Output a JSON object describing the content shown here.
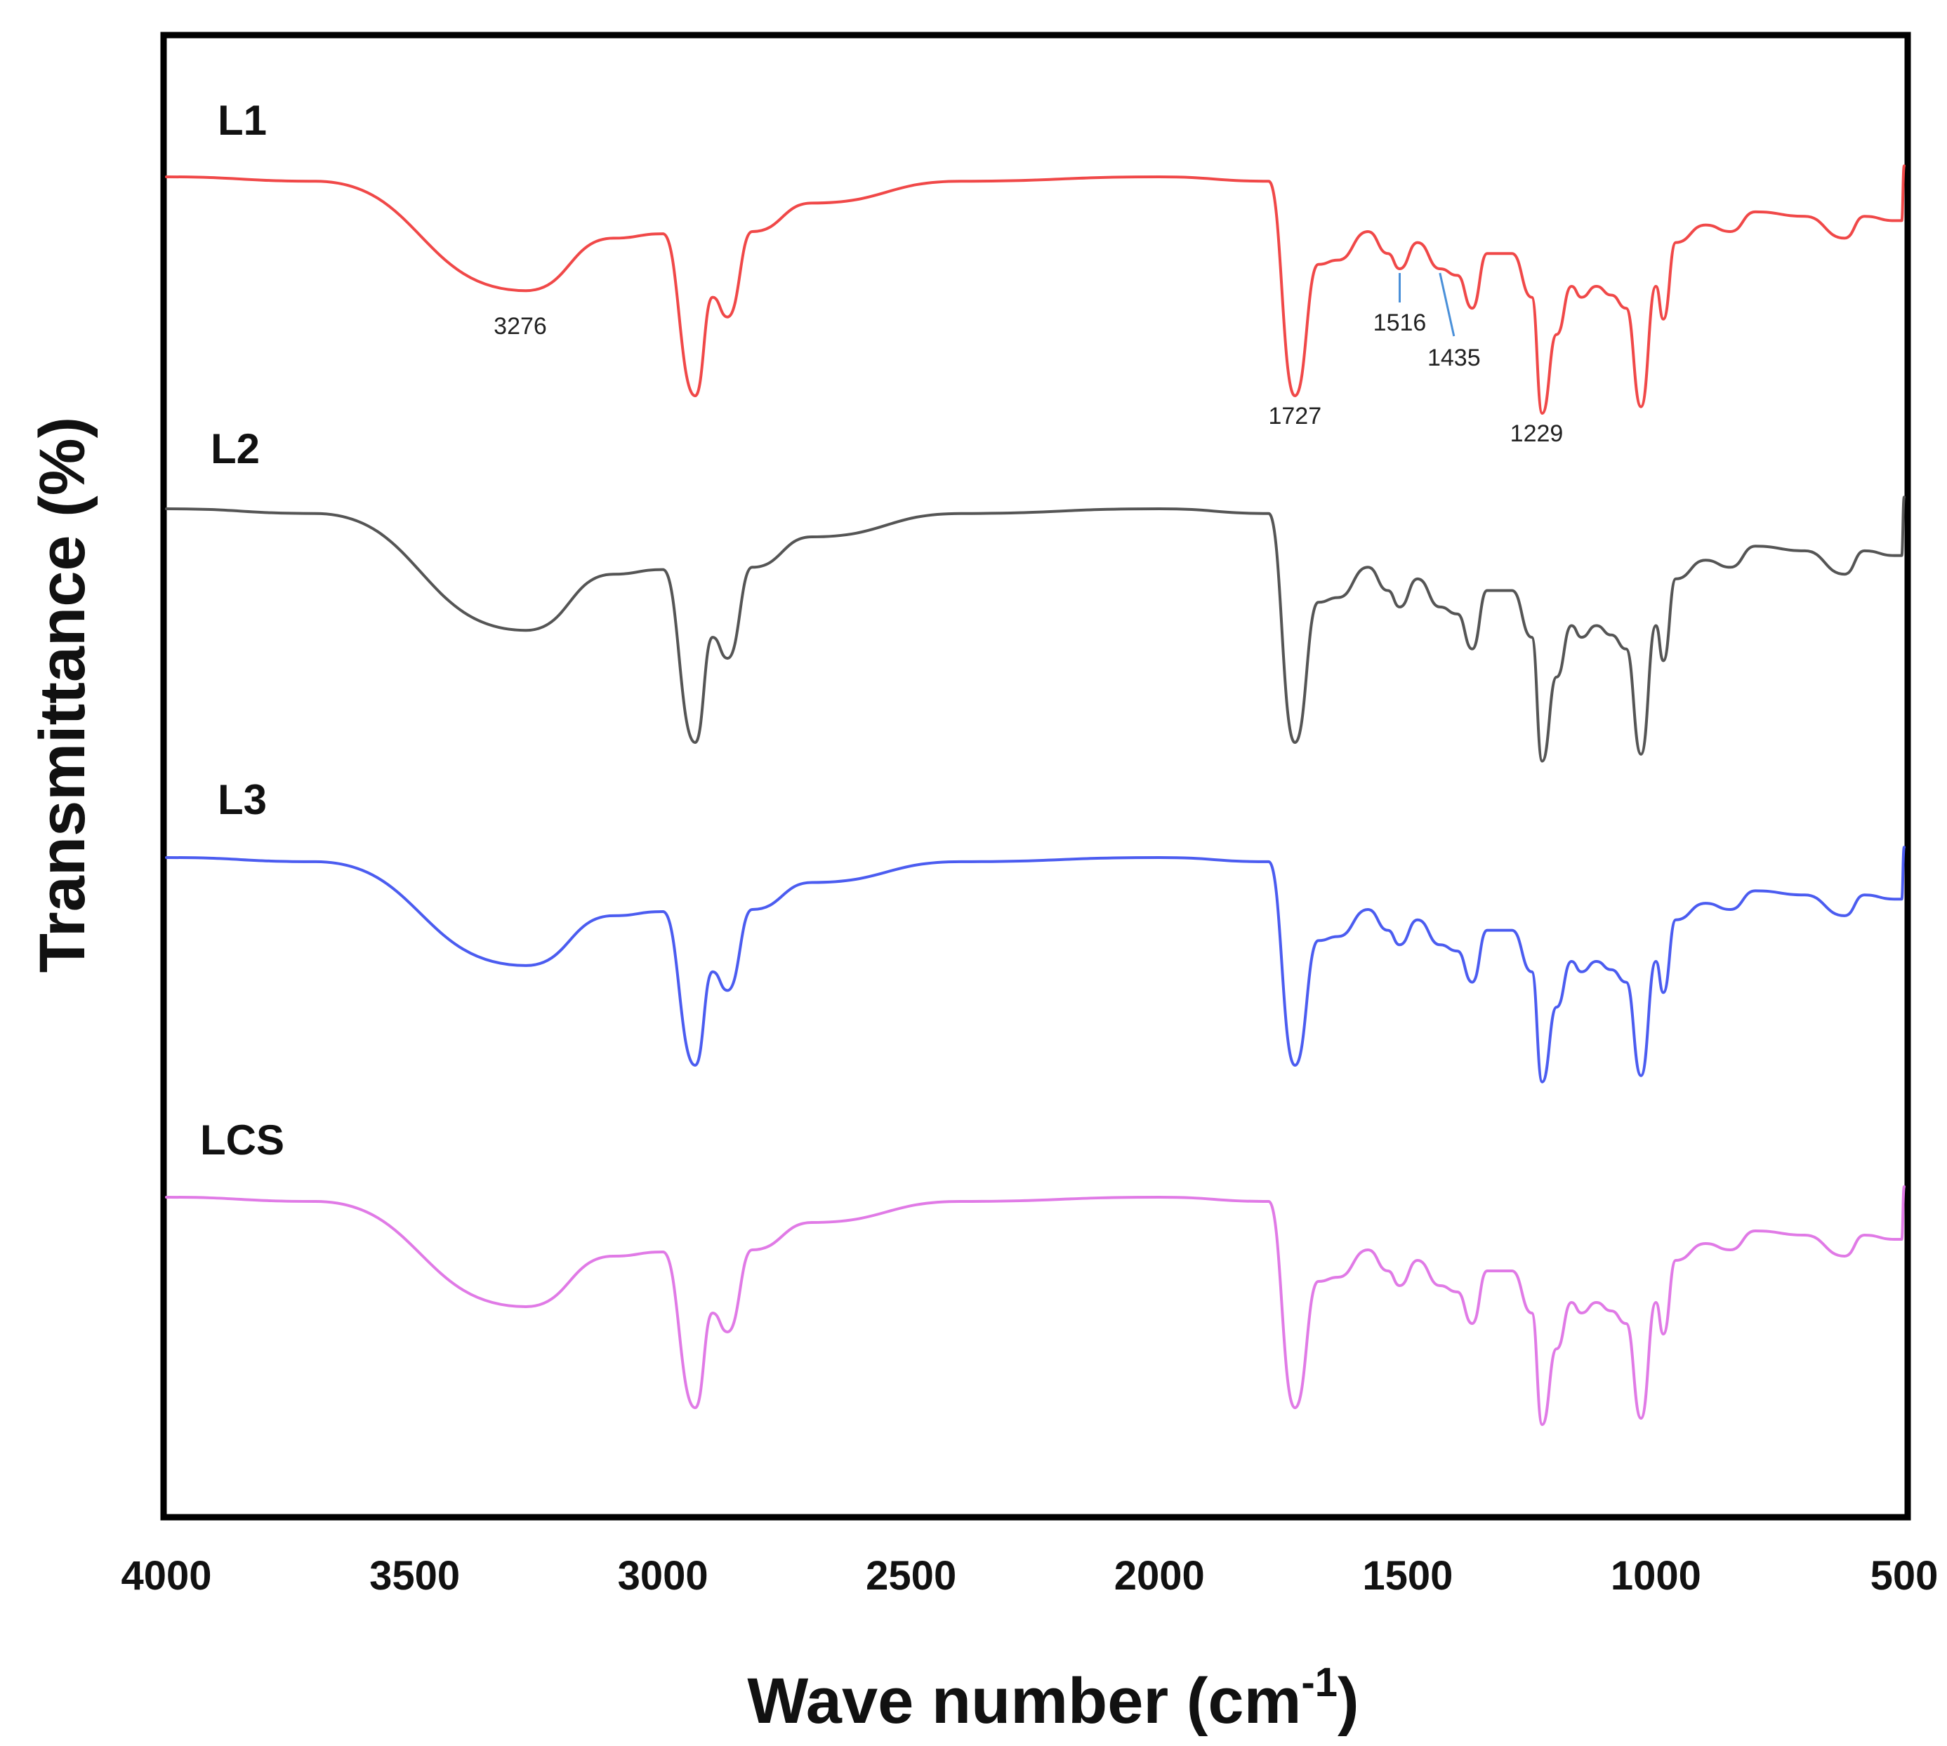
{
  "chart_data": {
    "type": "line",
    "title": "",
    "xlabel": "Wave number (cm",
    "xlabel_superscript": "-1",
    "xlabel_close": ")",
    "ylabel": "Transmittance (%)",
    "xlim": [
      4000,
      500
    ],
    "x_ticks": [
      4000,
      3500,
      3000,
      2500,
      2000,
      1500,
      1000,
      500
    ],
    "x_tick_labels": [
      "4000",
      "3500",
      "3000",
      "2500",
      "2000",
      "1500",
      "1000",
      "500"
    ],
    "y_units": "relative depth below baseline (0 = baseline, 1 = deepest band), each spectrum vertically offset",
    "series": [
      {
        "name": "L1",
        "color": "#f04848",
        "points": [
          [
            4000,
            0
          ],
          [
            3700,
            0.02
          ],
          [
            3276,
            0.52
          ],
          [
            3100,
            0.28
          ],
          [
            3000,
            0.26
          ],
          [
            2935,
            1.0
          ],
          [
            2900,
            0.55
          ],
          [
            2870,
            0.64
          ],
          [
            2820,
            0.25
          ],
          [
            2700,
            0.12
          ],
          [
            2400,
            0.02
          ],
          [
            2000,
            0.0
          ],
          [
            1780,
            0.02
          ],
          [
            1727,
            1.0
          ],
          [
            1680,
            0.4
          ],
          [
            1640,
            0.38
          ],
          [
            1580,
            0.25
          ],
          [
            1540,
            0.35
          ],
          [
            1516,
            0.42
          ],
          [
            1480,
            0.3
          ],
          [
            1435,
            0.42
          ],
          [
            1400,
            0.45
          ],
          [
            1370,
            0.6
          ],
          [
            1340,
            0.35
          ],
          [
            1290,
            0.35
          ],
          [
            1250,
            0.55
          ],
          [
            1229,
            1.08
          ],
          [
            1200,
            0.72
          ],
          [
            1170,
            0.5
          ],
          [
            1150,
            0.55
          ],
          [
            1120,
            0.5
          ],
          [
            1090,
            0.54
          ],
          [
            1060,
            0.6
          ],
          [
            1030,
            1.05
          ],
          [
            1000,
            0.5
          ],
          [
            985,
            0.65
          ],
          [
            960,
            0.3
          ],
          [
            900,
            0.22
          ],
          [
            850,
            0.25
          ],
          [
            800,
            0.16
          ],
          [
            700,
            0.18
          ],
          [
            620,
            0.28
          ],
          [
            580,
            0.18
          ],
          [
            520,
            0.2
          ],
          [
            505,
            0.2
          ],
          [
            500,
            -0.05
          ]
        ],
        "annotations": [
          {
            "label": "3276",
            "x": 3276
          },
          {
            "label": "1727",
            "x": 1727
          },
          {
            "label": "1516",
            "x": 1516
          },
          {
            "label": "1435",
            "x": 1435
          },
          {
            "label": "1229",
            "x": 1229
          }
        ]
      },
      {
        "name": "L2",
        "color": "#555555",
        "points": [
          [
            4000,
            0
          ],
          [
            3700,
            0.02
          ],
          [
            3276,
            0.52
          ],
          [
            3100,
            0.28
          ],
          [
            3000,
            0.26
          ],
          [
            2935,
            1.0
          ],
          [
            2900,
            0.55
          ],
          [
            2870,
            0.64
          ],
          [
            2820,
            0.25
          ],
          [
            2700,
            0.12
          ],
          [
            2400,
            0.02
          ],
          [
            2000,
            0.0
          ],
          [
            1780,
            0.02
          ],
          [
            1727,
            1.0
          ],
          [
            1680,
            0.4
          ],
          [
            1640,
            0.38
          ],
          [
            1580,
            0.25
          ],
          [
            1540,
            0.35
          ],
          [
            1516,
            0.42
          ],
          [
            1480,
            0.3
          ],
          [
            1435,
            0.42
          ],
          [
            1400,
            0.45
          ],
          [
            1370,
            0.6
          ],
          [
            1340,
            0.35
          ],
          [
            1290,
            0.35
          ],
          [
            1250,
            0.55
          ],
          [
            1229,
            1.08
          ],
          [
            1200,
            0.72
          ],
          [
            1170,
            0.5
          ],
          [
            1150,
            0.55
          ],
          [
            1120,
            0.5
          ],
          [
            1090,
            0.54
          ],
          [
            1060,
            0.6
          ],
          [
            1030,
            1.05
          ],
          [
            1000,
            0.5
          ],
          [
            985,
            0.65
          ],
          [
            960,
            0.3
          ],
          [
            900,
            0.22
          ],
          [
            850,
            0.25
          ],
          [
            800,
            0.16
          ],
          [
            700,
            0.18
          ],
          [
            620,
            0.28
          ],
          [
            580,
            0.18
          ],
          [
            520,
            0.2
          ],
          [
            505,
            0.2
          ],
          [
            500,
            -0.05
          ]
        ]
      },
      {
        "name": "L3",
        "color": "#4b5cf0",
        "points": [
          [
            4000,
            0
          ],
          [
            3700,
            0.02
          ],
          [
            3276,
            0.52
          ],
          [
            3100,
            0.28
          ],
          [
            3000,
            0.26
          ],
          [
            2935,
            1.0
          ],
          [
            2900,
            0.55
          ],
          [
            2870,
            0.64
          ],
          [
            2820,
            0.25
          ],
          [
            2700,
            0.12
          ],
          [
            2400,
            0.02
          ],
          [
            2000,
            0.0
          ],
          [
            1780,
            0.02
          ],
          [
            1727,
            1.0
          ],
          [
            1680,
            0.4
          ],
          [
            1640,
            0.38
          ],
          [
            1580,
            0.25
          ],
          [
            1540,
            0.35
          ],
          [
            1516,
            0.42
          ],
          [
            1480,
            0.3
          ],
          [
            1435,
            0.42
          ],
          [
            1400,
            0.45
          ],
          [
            1370,
            0.6
          ],
          [
            1340,
            0.35
          ],
          [
            1290,
            0.35
          ],
          [
            1250,
            0.55
          ],
          [
            1229,
            1.08
          ],
          [
            1200,
            0.72
          ],
          [
            1170,
            0.5
          ],
          [
            1150,
            0.55
          ],
          [
            1120,
            0.5
          ],
          [
            1090,
            0.54
          ],
          [
            1060,
            0.6
          ],
          [
            1030,
            1.05
          ],
          [
            1000,
            0.5
          ],
          [
            985,
            0.65
          ],
          [
            960,
            0.3
          ],
          [
            900,
            0.22
          ],
          [
            850,
            0.25
          ],
          [
            800,
            0.16
          ],
          [
            700,
            0.18
          ],
          [
            620,
            0.28
          ],
          [
            580,
            0.18
          ],
          [
            520,
            0.2
          ],
          [
            505,
            0.2
          ],
          [
            500,
            -0.05
          ]
        ]
      },
      {
        "name": "LCS",
        "color": "#e07ae6",
        "points": [
          [
            4000,
            0
          ],
          [
            3700,
            0.02
          ],
          [
            3276,
            0.52
          ],
          [
            3100,
            0.28
          ],
          [
            3000,
            0.26
          ],
          [
            2935,
            1.0
          ],
          [
            2900,
            0.55
          ],
          [
            2870,
            0.64
          ],
          [
            2820,
            0.25
          ],
          [
            2700,
            0.12
          ],
          [
            2400,
            0.02
          ],
          [
            2000,
            0.0
          ],
          [
            1780,
            0.02
          ],
          [
            1727,
            1.0
          ],
          [
            1680,
            0.4
          ],
          [
            1640,
            0.38
          ],
          [
            1580,
            0.25
          ],
          [
            1540,
            0.35
          ],
          [
            1516,
            0.42
          ],
          [
            1480,
            0.3
          ],
          [
            1435,
            0.42
          ],
          [
            1400,
            0.45
          ],
          [
            1370,
            0.6
          ],
          [
            1340,
            0.35
          ],
          [
            1290,
            0.35
          ],
          [
            1250,
            0.55
          ],
          [
            1229,
            1.08
          ],
          [
            1200,
            0.72
          ],
          [
            1170,
            0.5
          ],
          [
            1150,
            0.55
          ],
          [
            1120,
            0.5
          ],
          [
            1090,
            0.54
          ],
          [
            1060,
            0.6
          ],
          [
            1030,
            1.05
          ],
          [
            1000,
            0.5
          ],
          [
            985,
            0.65
          ],
          [
            960,
            0.3
          ],
          [
            900,
            0.22
          ],
          [
            850,
            0.25
          ],
          [
            800,
            0.16
          ],
          [
            700,
            0.18
          ],
          [
            620,
            0.28
          ],
          [
            580,
            0.18
          ],
          [
            520,
            0.2
          ],
          [
            505,
            0.2
          ],
          [
            500,
            -0.05
          ]
        ]
      }
    ]
  }
}
